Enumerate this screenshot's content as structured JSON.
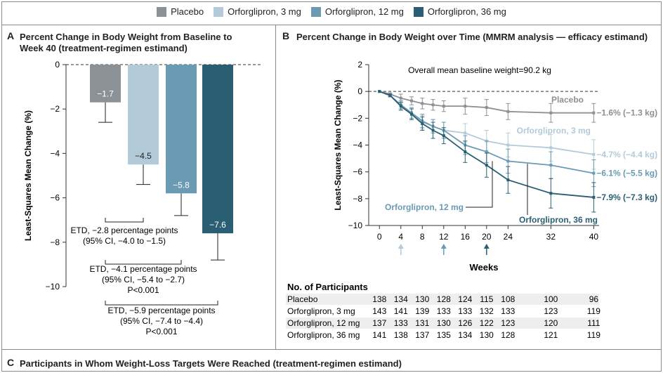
{
  "legend": [
    {
      "label": "Placebo",
      "color": "#8c9196"
    },
    {
      "label": "Orforglipron, 3 mg",
      "color": "#b3cbd8"
    },
    {
      "label": "Orforglipron, 12 mg",
      "color": "#6a9bb2"
    },
    {
      "label": "Orforglipron, 36 mg",
      "color": "#2a5f73"
    }
  ],
  "panels": {
    "a": {
      "letter": "A",
      "title": "Percent Change in Body Weight from Baseline to Week 40 (treatment-regimen estimand)"
    },
    "b": {
      "letter": "B",
      "title": "Percent Change in Body Weight over Time (MMRM analysis — efficacy estimand)"
    },
    "c": {
      "letter": "C",
      "title": "Participants in Whom Weight-Loss Targets Were Reached (treatment-regimen estimand)"
    }
  },
  "chart_data": [
    {
      "type": "bar",
      "panel": "A",
      "title": "Percent Change in Body Weight from Baseline to Week 40 (treatment-regimen estimand)",
      "ylabel": "Least-Squares Mean Change (%)",
      "ylim": [
        -10,
        0
      ],
      "yticks": [
        "0",
        "−2",
        "−4",
        "−6",
        "−8",
        "−10"
      ],
      "categories": [
        "Placebo",
        "Orforglipron, 3 mg",
        "Orforglipron, 12 mg",
        "Orforglipron, 36 mg"
      ],
      "values": [
        -1.7,
        -4.5,
        -5.8,
        -7.6
      ],
      "value_labels": [
        "−1.7",
        "−4.5",
        "−5.8",
        "−7.6"
      ],
      "error_low": [
        -2.6,
        -5.4,
        -6.8,
        -8.8
      ],
      "colors": [
        "#8c9196",
        "#b3cbd8",
        "#6a9bb2",
        "#2a5f73"
      ],
      "comparisons": [
        {
          "lines": [
            "ETD, −2.8 percentage points",
            "(95% CI, −4.0 to −1.5)"
          ]
        },
        {
          "lines": [
            "ETD, −4.1 percentage points",
            "(95% CI, −5.4 to −2.7)",
            "P<0.001"
          ]
        },
        {
          "lines": [
            "ETD, −5.9 percentage points",
            "(95% CI, −7.4 to −4.4)",
            "P<0.001"
          ]
        }
      ]
    },
    {
      "type": "line",
      "panel": "B",
      "title": "Percent Change in Body Weight over Time (MMRM analysis — efficacy estimand)",
      "xlabel": "Weeks",
      "ylabel": "Least-Squares Mean Change (%)",
      "xlim": [
        -2,
        41
      ],
      "ylim": [
        -10,
        2
      ],
      "xticks": [
        0,
        4,
        8,
        12,
        16,
        20,
        24,
        32,
        40
      ],
      "yticks": [
        "2",
        "0",
        "−2",
        "−4",
        "−6",
        "−8",
        "−10"
      ],
      "annotation": "Overall mean baseline weight=90.2 kg",
      "arrows_at": [
        4,
        12,
        20
      ],
      "x": [
        0,
        2,
        4,
        6,
        8,
        10,
        12,
        16,
        20,
        24,
        32,
        40
      ],
      "series": [
        {
          "name": "Placebo",
          "color": "#8c9196",
          "values": [
            0,
            -0.2,
            -0.5,
            -0.7,
            -0.9,
            -1.0,
            -1.1,
            -1.1,
            -1.2,
            -1.5,
            -1.6,
            -1.6
          ],
          "err": [
            0,
            0.1,
            0.3,
            0.3,
            0.4,
            0.4,
            0.4,
            0.6,
            0.6,
            0.6,
            0.7,
            0.7
          ],
          "end_label": "−1.6% (−1.3 kg)",
          "line_label": "Placebo"
        },
        {
          "name": "Orforglipron, 3 mg",
          "color": "#b3cbd8",
          "values": [
            0,
            -0.3,
            -1.0,
            -1.7,
            -2.3,
            -2.6,
            -2.9,
            -3.1,
            -3.7,
            -4.0,
            -4.2,
            -4.7
          ],
          "err": [
            0,
            0.1,
            0.3,
            0.4,
            0.5,
            0.5,
            0.6,
            0.7,
            0.8,
            0.9,
            1.0,
            1.1
          ],
          "end_label": "−4.7% (−4.4 kg)",
          "line_label": "Orforglipron, 3 mg"
        },
        {
          "name": "Orforglipron, 12 mg",
          "color": "#6a9bb2",
          "values": [
            0,
            -0.3,
            -1.0,
            -1.6,
            -2.2,
            -2.6,
            -2.9,
            -4.0,
            -4.5,
            -5.2,
            -5.5,
            -6.1
          ],
          "err": [
            0,
            0.1,
            0.3,
            0.4,
            0.5,
            0.5,
            0.6,
            0.7,
            0.8,
            0.9,
            1.0,
            1.0
          ],
          "end_label": "−6.1% (−5.5 kg)",
          "line_label": "Orforglipron, 12 mg"
        },
        {
          "name": "Orforglipron, 36 mg",
          "color": "#2a5f73",
          "values": [
            0,
            -0.3,
            -1.1,
            -1.7,
            -2.4,
            -2.9,
            -3.3,
            -4.5,
            -5.5,
            -6.6,
            -7.6,
            -7.9
          ],
          "err": [
            0,
            0.1,
            0.3,
            0.4,
            0.5,
            0.6,
            0.6,
            0.8,
            0.9,
            1.0,
            1.1,
            1.1
          ],
          "end_label": "−7.9% (−7.3 kg)",
          "line_label": "Orforglipron, 36 mg"
        }
      ]
    },
    {
      "type": "table",
      "panel": "B",
      "title": "No. of Participants",
      "columns": [
        0,
        4,
        8,
        12,
        16,
        20,
        24,
        32,
        40
      ],
      "rows": [
        {
          "label": "Placebo",
          "values": [
            "138",
            "134",
            "130",
            "128",
            "124",
            "115",
            "108",
            "100",
            "96"
          ]
        },
        {
          "label": "Orforglipron, 3 mg",
          "values": [
            "143",
            "141",
            "139",
            "133",
            "133",
            "132",
            "133",
            "123",
            "119"
          ]
        },
        {
          "label": "Orforglipron, 12 mg",
          "values": [
            "137",
            "133",
            "131",
            "130",
            "126",
            "122",
            "123",
            "120",
            "111"
          ]
        },
        {
          "label": "Orforglipron, 36 mg",
          "values": [
            "141",
            "138",
            "137",
            "135",
            "134",
            "130",
            "128",
            "121",
            "119"
          ]
        }
      ]
    }
  ]
}
